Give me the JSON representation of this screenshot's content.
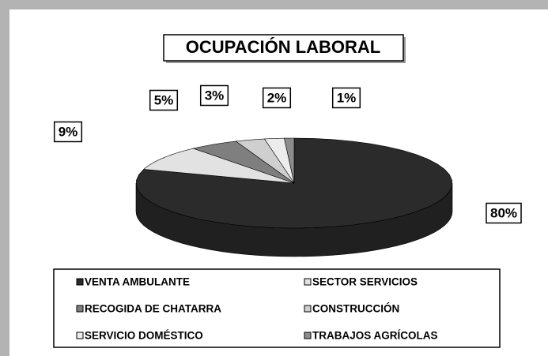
{
  "chart_data": {
    "type": "pie",
    "title": "OCUPACIÓN LABORAL",
    "categories": [
      "VENTA AMBULANTE",
      "SECTOR SERVICIOS",
      "RECOGIDA DE CHATARRA",
      "CONSTRUCCIÓN",
      "SERVICIO DOMÉSTICO",
      "TRABAJOS AGRÍCOLAS"
    ],
    "values": [
      80,
      9,
      5,
      3,
      2,
      1
    ],
    "value_labels": [
      "80%",
      "9%",
      "5%",
      "3%",
      "2%",
      "1%"
    ],
    "colors": [
      "#2b2b2b",
      "#e2e2e2",
      "#7f7f7f",
      "#cfcfcf",
      "#ececec",
      "#8c8c8c"
    ],
    "legend": "bottom"
  }
}
